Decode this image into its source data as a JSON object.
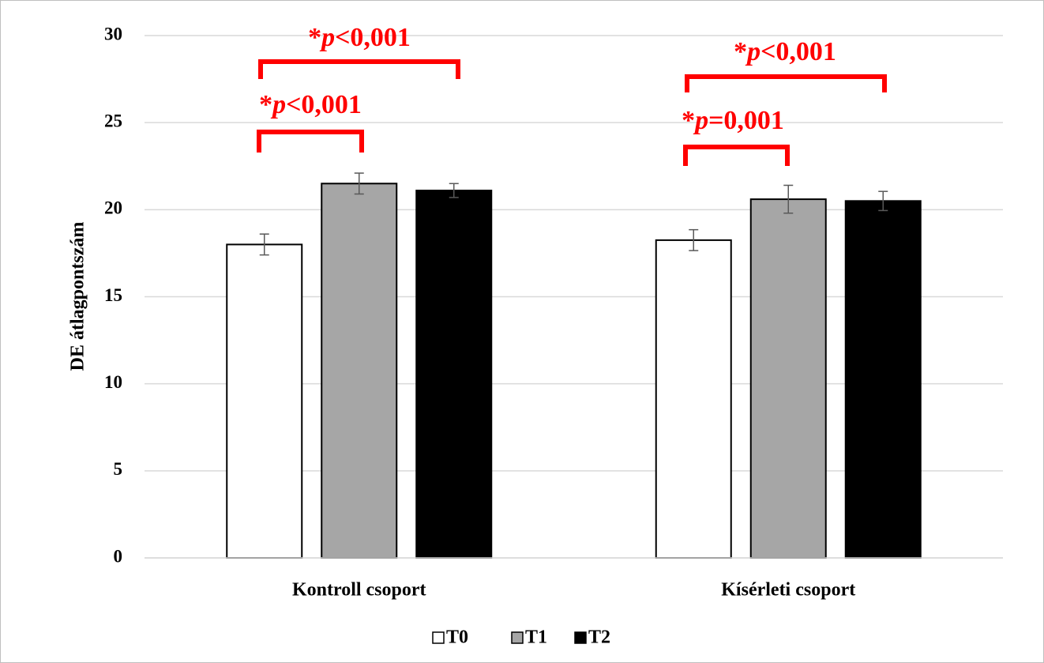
{
  "chart_data": {
    "type": "bar",
    "y_label": "DE átlagpontszám",
    "categories": [
      "Kontroll csoport",
      "Kísérleti csoport"
    ],
    "series": [
      {
        "name": "T0",
        "color": "#ffffff",
        "values": [
          18.0,
          18.25
        ],
        "errors": [
          0.6,
          0.6
        ]
      },
      {
        "name": "T1",
        "color": "#a6a6a6",
        "values": [
          21.5,
          20.6
        ],
        "errors": [
          0.6,
          0.8
        ]
      },
      {
        "name": "T2",
        "color": "#000000",
        "values": [
          21.1,
          20.5
        ],
        "errors": [
          0.4,
          0.55
        ]
      }
    ],
    "ylim": [
      0,
      30
    ],
    "yticks": [
      0,
      5,
      10,
      15,
      20,
      25,
      30
    ],
    "grid": true,
    "legend": "bottom",
    "annotations": [
      {
        "parts": [
          "*",
          "p",
          "<0,001"
        ]
      },
      {
        "parts": [
          "*",
          "p",
          "<0,001"
        ]
      },
      {
        "parts": [
          "*",
          "p",
          "<0,001"
        ]
      },
      {
        "parts": [
          "*",
          "p",
          "=0,001"
        ]
      }
    ]
  }
}
